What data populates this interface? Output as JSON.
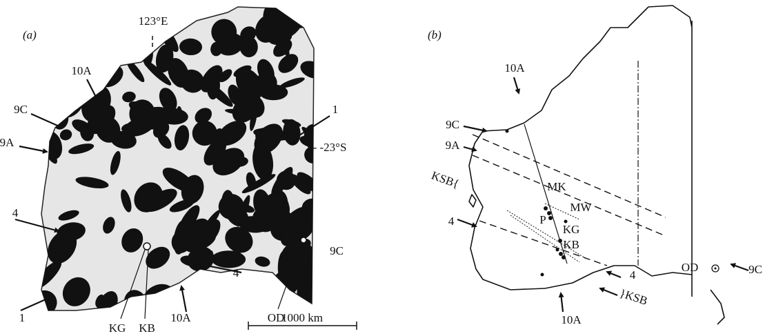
{
  "panel_a": {
    "label": "(a)",
    "labels": [
      "123°E",
      "10A",
      "9C",
      "9A",
      "1",
      "- -23°S",
      "4",
      "1",
      "KG",
      "KB",
      "10A",
      "4",
      "OD",
      "9C"
    ],
    "scale_bar": "1000 km"
  },
  "panel_b": {
    "label": "(b)",
    "labels": [
      "10A",
      "9C",
      "9A",
      "KSB{",
      "MK",
      "MW",
      "P",
      "KG",
      "KB",
      "4",
      "OD",
      "9C",
      "4",
      "}KSB",
      "10A"
    ]
  }
}
